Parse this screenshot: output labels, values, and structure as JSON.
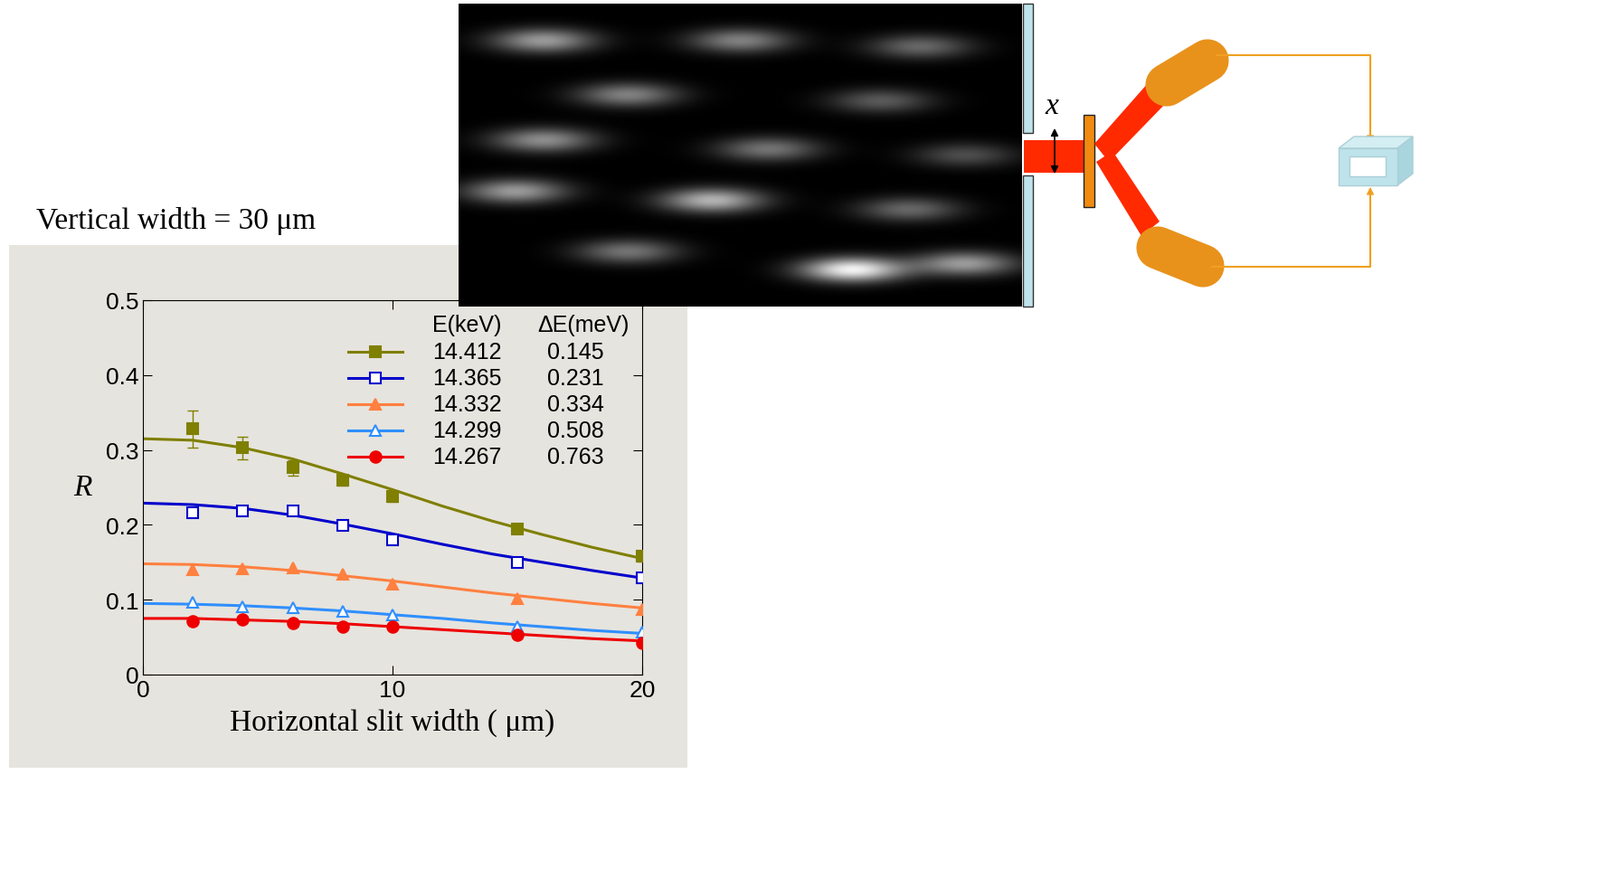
{
  "chart_data": {
    "type": "scatter",
    "title": "Vertical width = 30 μm",
    "x_label": "Horizontal slit width ( μm)",
    "y_label": "R",
    "xlim": [
      0,
      20
    ],
    "xticks": [
      0,
      10,
      20
    ],
    "ylim": [
      0,
      0.5
    ],
    "yticks": [
      0,
      0.1,
      0.2,
      0.3,
      0.4,
      0.5
    ],
    "grid": false,
    "legend_header": [
      "E(keV)",
      "ΔE(meV)"
    ],
    "x": [
      2,
      4,
      6,
      8,
      10,
      15,
      20
    ],
    "fit_x": [
      0,
      2,
      4,
      6,
      8,
      10,
      12,
      14,
      16,
      18,
      20
    ],
    "series": [
      {
        "name": "14.412",
        "delta_e": 0.145,
        "color": "#7f7f00",
        "marker": "square",
        "values": [
          0.328,
          0.303,
          0.276,
          0.26,
          0.238,
          0.195,
          0.158
        ],
        "errors": [
          0.025,
          0.015,
          0.01,
          0.007,
          0.007,
          0.007,
          0.007
        ],
        "fit": [
          0.315,
          0.313,
          0.303,
          0.288,
          0.268,
          0.247,
          0.225,
          0.205,
          0.187,
          0.17,
          0.155
        ]
      },
      {
        "name": "14.365",
        "delta_e": 0.231,
        "color": "#0000cc",
        "marker": "open_square",
        "values": [
          0.216,
          0.219,
          0.218,
          0.199,
          0.18,
          0.15,
          0.129
        ],
        "fit": [
          0.229,
          0.227,
          0.222,
          0.213,
          0.201,
          0.188,
          0.174,
          0.161,
          0.15,
          0.139,
          0.129
        ]
      },
      {
        "name": "14.332",
        "delta_e": 0.334,
        "color": "#ff8040",
        "marker": "triangle",
        "values": [
          0.14,
          0.141,
          0.142,
          0.134,
          0.121,
          0.102,
          0.087
        ],
        "fit": [
          0.148,
          0.147,
          0.144,
          0.139,
          0.132,
          0.125,
          0.117,
          0.109,
          0.102,
          0.095,
          0.089
        ]
      },
      {
        "name": "14.299",
        "delta_e": 0.508,
        "color": "#2f8fff",
        "marker": "open_triangle",
        "values": [
          0.097,
          0.091,
          0.089,
          0.084,
          0.08,
          0.064,
          0.057
        ],
        "fit": [
          0.095,
          0.094,
          0.092,
          0.089,
          0.085,
          0.08,
          0.075,
          0.069,
          0.064,
          0.059,
          0.055
        ]
      },
      {
        "name": "14.267",
        "delta_e": 0.763,
        "color": "#ee0000",
        "marker": "circle",
        "values": [
          0.071,
          0.074,
          0.069,
          0.064,
          0.064,
          0.053,
          0.042
        ],
        "fit": [
          0.075,
          0.075,
          0.073,
          0.071,
          0.068,
          0.064,
          0.06,
          0.056,
          0.052,
          0.048,
          0.045
        ]
      }
    ]
  },
  "diagram": {
    "slit_label": "x"
  }
}
